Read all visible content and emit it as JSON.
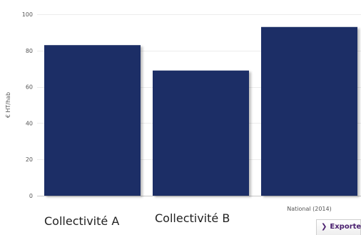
{
  "chart_data": {
    "type": "bar",
    "categories": [
      "Collectivité A",
      "Collectivité B",
      "National (2014)"
    ],
    "values": [
      83,
      69,
      93
    ],
    "title": "",
    "xlabel": "",
    "ylabel": "€ HT/hab",
    "ylim": [
      0,
      100
    ],
    "yticks": [
      0,
      20,
      40,
      60,
      80,
      100
    ],
    "grid": true,
    "bar_color": "#1f2f66"
  },
  "export_button": {
    "icon": "chevron-right-icon",
    "label": "Exporter"
  }
}
